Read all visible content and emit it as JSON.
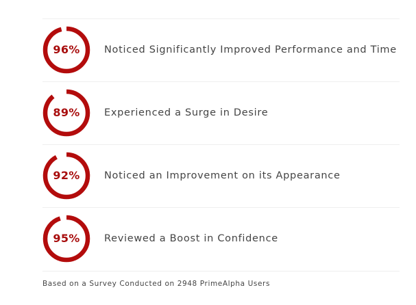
{
  "stats": [
    {
      "percent_label": "96%",
      "value": 0.96,
      "label": "Noticed Significantly Improved Performance and Time"
    },
    {
      "percent_label": "89%",
      "value": 0.89,
      "label": "Experienced a Surge in Desire"
    },
    {
      "percent_label": "92%",
      "value": 0.92,
      "label": "Noticed an Improvement on its Appearance"
    },
    {
      "percent_label": "95%",
      "value": 0.95,
      "label": "Reviewed a Boost in Confidence"
    }
  ],
  "footnote": "Based on a Survey Conducted on 2948 PrimeAlpha Users",
  "colors": {
    "ring_fill": "#b30c0c",
    "ring_track": "#ffffff",
    "percent_text": "#a80d0d",
    "label_text": "#444444",
    "divider": "#eeeeee"
  }
}
